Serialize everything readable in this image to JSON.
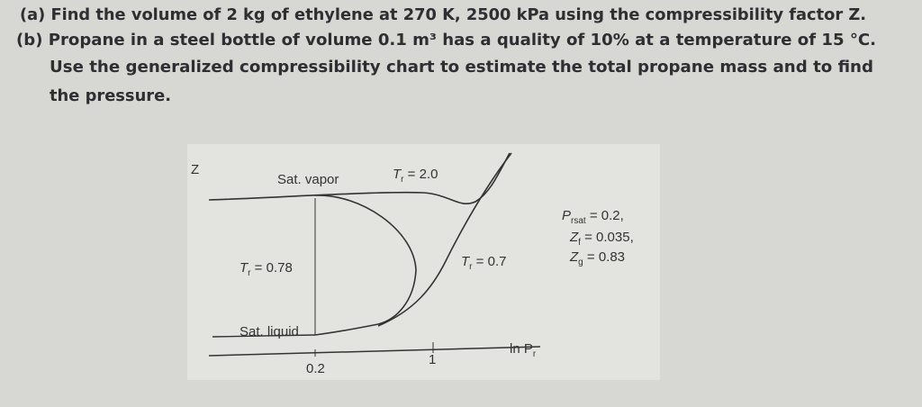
{
  "problem": {
    "part_a": "(a) Find the volume of 2 kg of ethylene at 270 K, 2500 kPa using the compressibility factor Z.",
    "part_b_lines": [
      "(b) Propane in a steel bottle of volume 0.1 m³ has a quality of 10% at a temperature of 15 °C.",
      "Use the generalized compressibility chart to estimate the total propane mass and to find",
      "the pressure."
    ]
  },
  "figure": {
    "y_axis_label": "Z",
    "sat_vapor": "Sat. vapor",
    "sat_liquid": "Sat. liquid",
    "isotherm_high": {
      "symbol": "T",
      "sub": "r",
      "text": " = 2.0"
    },
    "isotherm_mid": {
      "symbol": "T",
      "sub": "r",
      "text": " = 0.78"
    },
    "isotherm_low": {
      "symbol": "T",
      "sub": "r",
      "text": " = 0.7"
    },
    "notes": [
      {
        "symbol": "P",
        "sub": "rsat",
        "text": " = 0.2,"
      },
      {
        "symbol": "Z",
        "sub": "f",
        "text": " = 0.035,"
      },
      {
        "symbol": "Z",
        "sub": "g",
        "text": " = 0.83"
      }
    ],
    "x_ticks": [
      "0.2",
      "1"
    ],
    "x_axis_label": {
      "symbol": "ln P",
      "sub": "r"
    }
  }
}
